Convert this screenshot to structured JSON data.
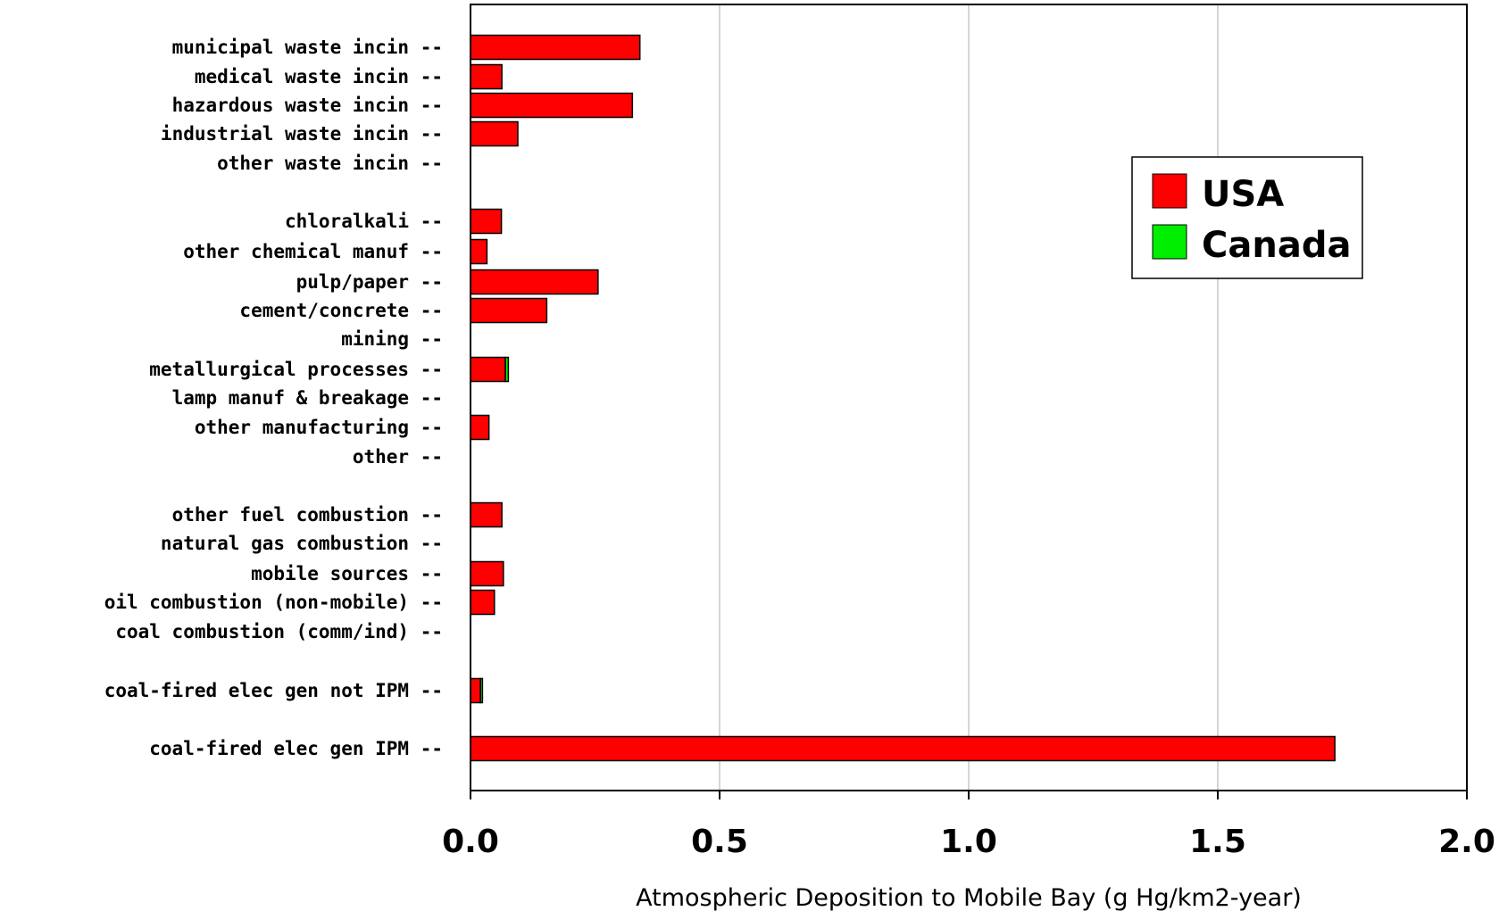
{
  "chart_data": {
    "type": "bar",
    "orientation": "horizontal",
    "categories": [
      "municipal waste incin --",
      "medical waste incin --",
      "hazardous waste incin --",
      "industrial waste incin --",
      "other waste incin --",
      "chloralkali --",
      "other chemical manuf --",
      "pulp/paper --",
      "cement/concrete --",
      "mining --",
      "metallurgical processes --",
      "lamp manuf & breakage --",
      "other manufacturing --",
      "other --",
      "other fuel combustion --",
      "natural gas combustion --",
      "mobile sources --",
      "oil combustion (non-mobile) --",
      "coal combustion (comm/ind) --",
      "coal-fired elec gen not IPM --",
      "coal-fired elec gen IPM --"
    ],
    "series": [
      {
        "name": "USA",
        "color": "#ff0000",
        "values": [
          0.34,
          0.063,
          0.325,
          0.095,
          0,
          0.062,
          0.033,
          0.256,
          0.153,
          0,
          0.07,
          0,
          0.037,
          0,
          0.063,
          0,
          0.066,
          0.048,
          0,
          0.02,
          1.735
        ]
      },
      {
        "name": "Canada",
        "color": "#00ee00",
        "values": [
          0,
          0,
          0,
          0,
          0,
          0,
          0,
          0,
          0,
          0,
          0.006,
          0,
          0,
          0,
          0,
          0,
          0,
          0,
          0,
          0.004,
          0
        ]
      }
    ],
    "xlabel": "Atmospheric Deposition to Mobile Bay (g Hg/km2-year)",
    "xlim": [
      0,
      2.0
    ],
    "xticks": [
      0.0,
      0.5,
      1.0,
      1.5,
      2.0
    ],
    "xtick_labels": [
      "0.0",
      "0.5",
      "1.0",
      "1.5",
      "2.0"
    ],
    "grid": "vertical",
    "legend_position": "top-right",
    "stacked": true
  }
}
